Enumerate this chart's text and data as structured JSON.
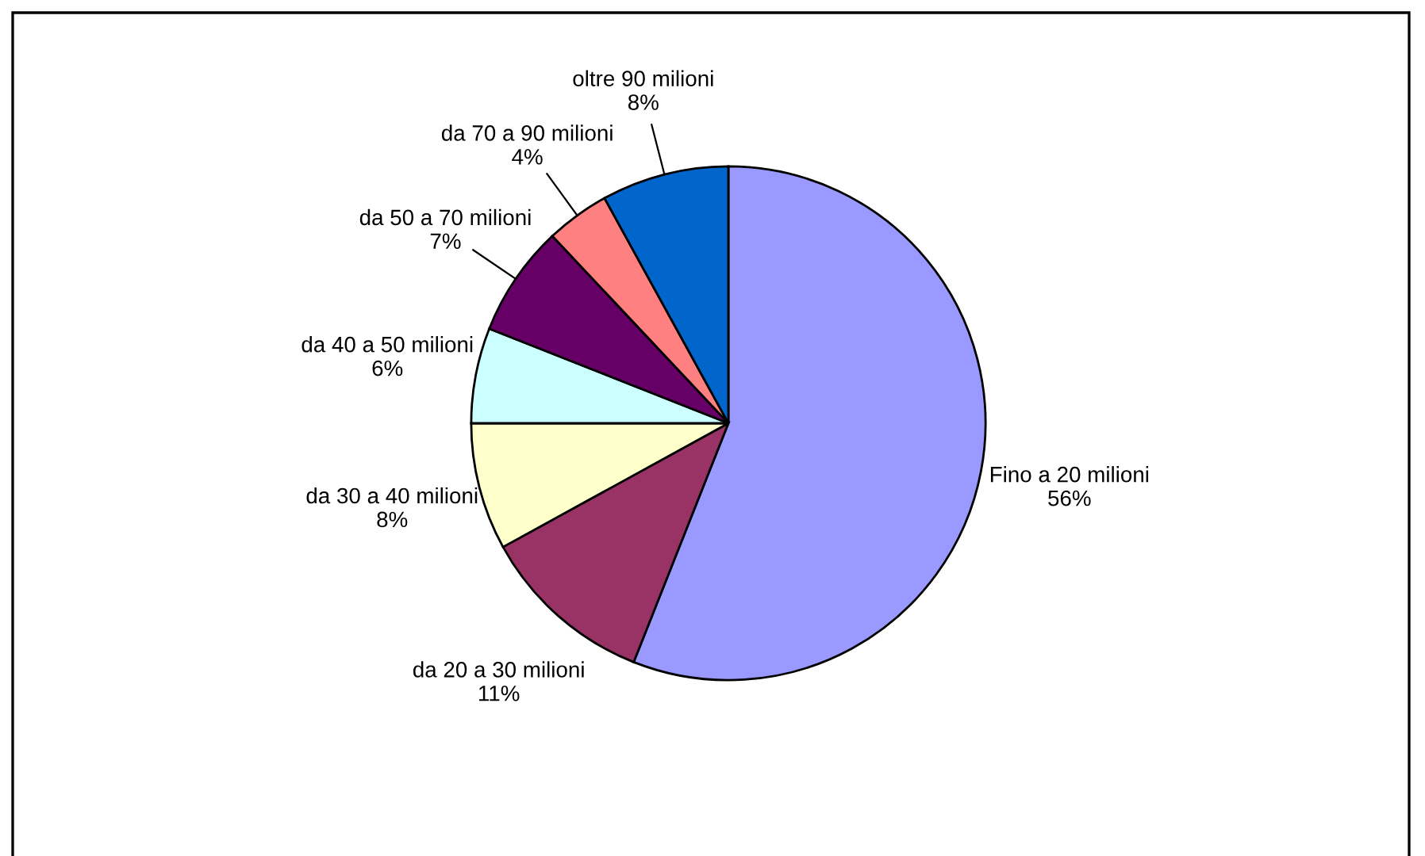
{
  "chart_data": {
    "type": "pie",
    "categories": [
      "Fino a 20 milioni",
      "da 20 a 30 milioni",
      "da 30 a 40 milioni",
      "da 40 a 50 milioni",
      "da 50 a 70 milioni",
      "da 70 a 90 milioni",
      "oltre 90 milioni"
    ],
    "values": [
      56,
      11,
      8,
      6,
      7,
      4,
      8
    ],
    "value_labels": [
      "56%",
      "11%",
      "8%",
      "6%",
      "7%",
      "4%",
      "8%"
    ],
    "colors": [
      "#9999ff",
      "#993366",
      "#ffffcc",
      "#ccffff",
      "#660066",
      "#ff8080",
      "#0066cc"
    ],
    "legend": false
  }
}
